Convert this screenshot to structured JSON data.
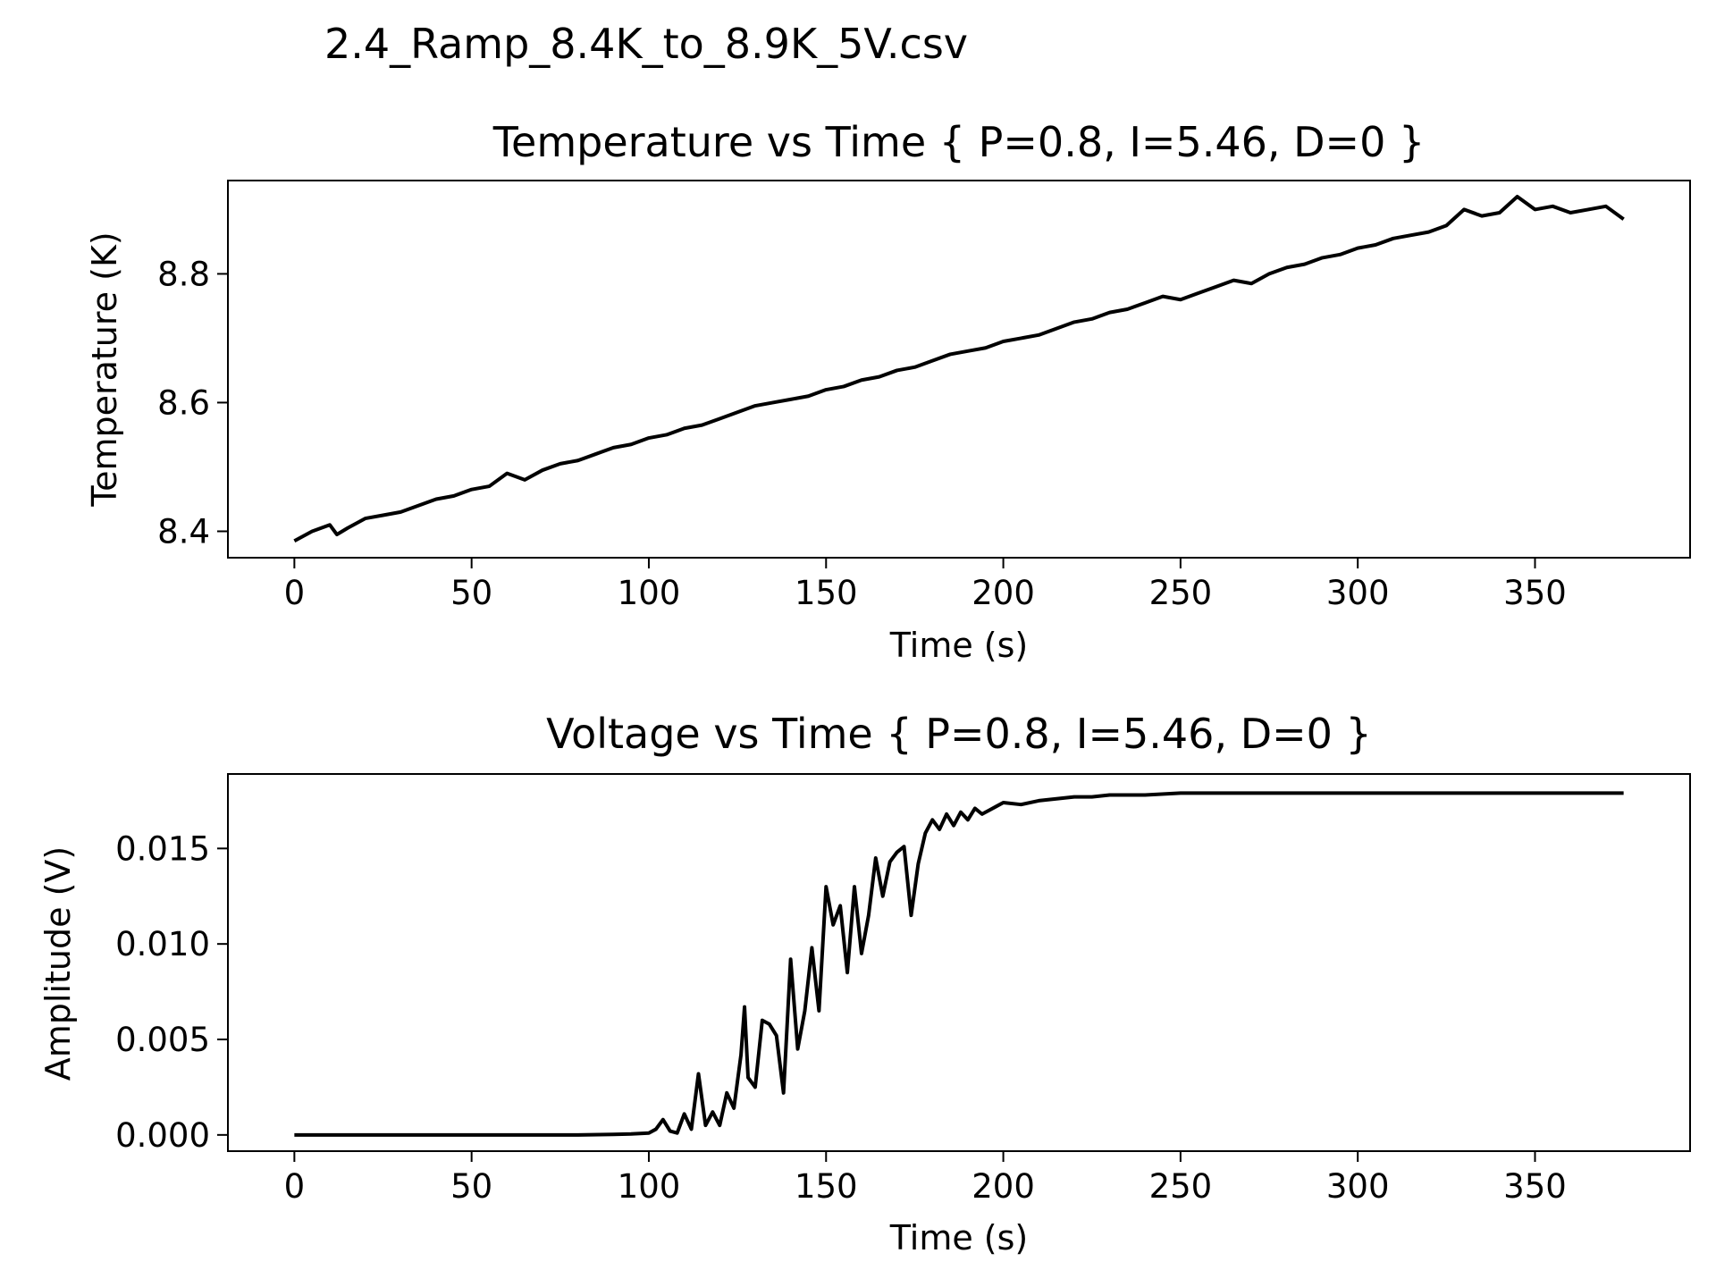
{
  "figure": {
    "suptitle": "2.4_Ramp_8.4K_to_8.9K_5V.csv"
  },
  "chart_data": [
    {
      "type": "line",
      "title": "Temperature vs Time { P=0.8, I=5.46, D=0 }",
      "xlabel": "Time (s)",
      "ylabel": "Temperature (K)",
      "xlim": [
        -18.75,
        393.75
      ],
      "ylim": [
        8.359,
        8.945
      ],
      "xticks": [
        0,
        50,
        100,
        150,
        200,
        250,
        300,
        350
      ],
      "xtick_labels": [
        "0",
        "50",
        "100",
        "150",
        "200",
        "250",
        "300",
        "350"
      ],
      "yticks": [
        8.4,
        8.6,
        8.8
      ],
      "ytick_labels": [
        "8.4",
        "8.6",
        "8.8"
      ],
      "grid": false,
      "color": "#000000",
      "series": [
        {
          "x": [
            0,
            5,
            10,
            12,
            15,
            20,
            25,
            30,
            40,
            45,
            50,
            55,
            60,
            65,
            70,
            75,
            80,
            85,
            90,
            95,
            100,
            105,
            110,
            115,
            120,
            125,
            130,
            135,
            140,
            145,
            150,
            155,
            160,
            165,
            170,
            175,
            180,
            185,
            190,
            195,
            200,
            205,
            210,
            215,
            220,
            225,
            230,
            235,
            240,
            245,
            250,
            255,
            260,
            265,
            270,
            275,
            280,
            285,
            290,
            295,
            300,
            305,
            310,
            315,
            320,
            325,
            330,
            335,
            340,
            345,
            350,
            355,
            360,
            365,
            370,
            375
          ],
          "y": [
            8.385,
            8.4,
            8.41,
            8.395,
            8.405,
            8.42,
            8.425,
            8.43,
            8.45,
            8.455,
            8.465,
            8.47,
            8.49,
            8.48,
            8.495,
            8.505,
            8.51,
            8.52,
            8.53,
            8.535,
            8.545,
            8.55,
            8.56,
            8.565,
            8.575,
            8.585,
            8.595,
            8.6,
            8.605,
            8.61,
            8.62,
            8.625,
            8.635,
            8.64,
            8.65,
            8.655,
            8.665,
            8.675,
            8.68,
            8.685,
            8.695,
            8.7,
            8.705,
            8.715,
            8.725,
            8.73,
            8.74,
            8.745,
            8.755,
            8.765,
            8.76,
            8.77,
            8.78,
            8.79,
            8.785,
            8.8,
            8.81,
            8.815,
            8.825,
            8.83,
            8.84,
            8.845,
            8.855,
            8.86,
            8.865,
            8.875,
            8.9,
            8.89,
            8.895,
            8.92,
            8.9,
            8.905,
            8.895,
            8.9,
            8.905,
            8.885
          ]
        }
      ]
    },
    {
      "type": "line",
      "title": "Voltage vs Time { P=0.8, I=5.46, D=0 }",
      "xlabel": "Time (s)",
      "ylabel": "Amplitude (V)",
      "xlim": [
        -18.75,
        393.75
      ],
      "ylim": [
        -0.00085,
        0.0189
      ],
      "xticks": [
        0,
        50,
        100,
        150,
        200,
        250,
        300,
        350
      ],
      "xtick_labels": [
        "0",
        "50",
        "100",
        "150",
        "200",
        "250",
        "300",
        "350"
      ],
      "yticks": [
        0.0,
        0.005,
        0.01,
        0.015
      ],
      "ytick_labels": [
        "0.000",
        "0.005",
        "0.010",
        "0.015"
      ],
      "grid": false,
      "color": "#000000",
      "series": [
        {
          "x": [
            0,
            20,
            40,
            60,
            80,
            90,
            95,
            100,
            102,
            104,
            106,
            108,
            110,
            112,
            114,
            116,
            118,
            120,
            122,
            124,
            126,
            127,
            128,
            130,
            132,
            134,
            136,
            138,
            140,
            142,
            144,
            146,
            148,
            150,
            152,
            154,
            156,
            158,
            160,
            162,
            164,
            166,
            168,
            170,
            172,
            174,
            176,
            178,
            180,
            182,
            184,
            186,
            188,
            190,
            192,
            194,
            196,
            198,
            200,
            205,
            210,
            215,
            220,
            225,
            230,
            240,
            250,
            260,
            270,
            280,
            290,
            300,
            310,
            320,
            330,
            340,
            350,
            360,
            370,
            375
          ],
          "y": [
            0.0,
            0.0,
            0.0,
            0.0,
            0.0,
            3e-05,
            5e-05,
            0.0001,
            0.0003,
            0.0008,
            0.0002,
            0.0001,
            0.0011,
            0.0003,
            0.0032,
            0.0005,
            0.0012,
            0.0005,
            0.0022,
            0.0014,
            0.0042,
            0.0067,
            0.003,
            0.0025,
            0.006,
            0.0058,
            0.0052,
            0.0022,
            0.0092,
            0.0045,
            0.0065,
            0.0098,
            0.0065,
            0.013,
            0.011,
            0.012,
            0.0085,
            0.013,
            0.0095,
            0.0115,
            0.0145,
            0.0125,
            0.0143,
            0.0148,
            0.0151,
            0.0115,
            0.0142,
            0.0158,
            0.0165,
            0.016,
            0.0168,
            0.0162,
            0.0169,
            0.0165,
            0.0171,
            0.0168,
            0.017,
            0.0172,
            0.0174,
            0.0173,
            0.0175,
            0.0176,
            0.0177,
            0.0177,
            0.0178,
            0.0178,
            0.0179,
            0.0179,
            0.0179,
            0.0179,
            0.0179,
            0.0179,
            0.0179,
            0.0179,
            0.0179,
            0.0179,
            0.0179,
            0.0179,
            0.0179,
            0.0179
          ]
        }
      ]
    }
  ]
}
